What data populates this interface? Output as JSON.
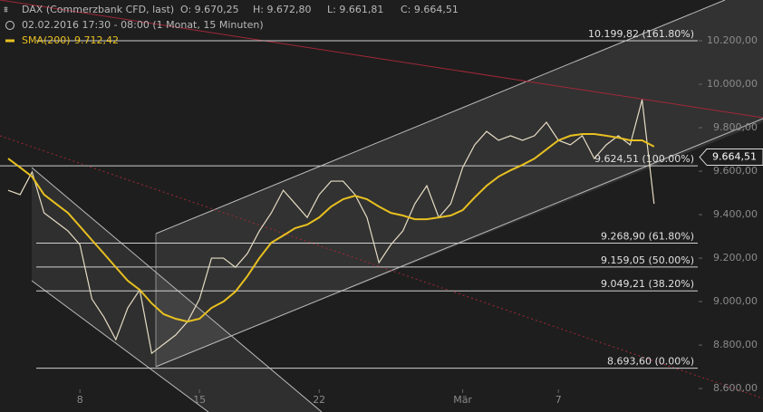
{
  "header": {
    "instrument": "DAX (Commerzbank CFD, last)",
    "open": "O: 9.670,25",
    "high": "H: 9.672,80",
    "low": "L: 9.661,81",
    "close": "C: 9.664,51",
    "period": "02.02.2016 17:30 - 08:00 (1 Monat, 15 Minuten)",
    "sma_value": "9.712,42"
  },
  "chart_data": {
    "type": "line",
    "categories": [
      null,
      null,
      null,
      null,
      null,
      null,
      "8",
      null,
      null,
      null,
      null,
      null,
      null,
      null,
      null,
      null,
      "15",
      null,
      null,
      null,
      null,
      null,
      null,
      null,
      null,
      null,
      "22",
      null,
      null,
      null,
      null,
      null,
      null,
      null,
      null,
      null,
      null,
      null,
      "Mär",
      null,
      null,
      null,
      null,
      null,
      null,
      null,
      "7",
      null,
      null,
      null,
      null,
      null,
      null,
      null,
      null
    ],
    "series": [
      {
        "name": "DAX (Commerzbank CFD, last)",
        "color": "#e6dcc4",
        "values": [
          9512,
          9492,
          9596,
          9408,
          9367,
          9325,
          9262,
          9012,
          8929,
          8825,
          8971,
          9054,
          8762,
          8804,
          8846,
          8908,
          9012,
          9200,
          9200,
          9158,
          9221,
          9325,
          9408,
          9512,
          9450,
          9387,
          9492,
          9554,
          9554,
          9492,
          9387,
          9179,
          9262,
          9325,
          9450,
          9533,
          9387,
          9450,
          9617,
          9721,
          9783,
          9742,
          9763,
          9742,
          9763,
          9825,
          9742,
          9721,
          9763,
          9658,
          9721,
          9763,
          9721,
          9929,
          9450
        ]
      },
      {
        "name": "SMA(200)",
        "color": "#e8c020",
        "values": [
          9658,
          9617,
          9575,
          9492,
          9450,
          9408,
          9346,
          9283,
          9221,
          9158,
          9096,
          9054,
          8992,
          8942,
          8921,
          8908,
          8921,
          8971,
          9000,
          9046,
          9117,
          9200,
          9271,
          9304,
          9338,
          9354,
          9387,
          9437,
          9471,
          9487,
          9471,
          9437,
          9408,
          9396,
          9379,
          9379,
          9387,
          9396,
          9421,
          9479,
          9533,
          9575,
          9604,
          9629,
          9658,
          9700,
          9742,
          9763,
          9771,
          9771,
          9763,
          9754,
          9742,
          9742,
          9713
        ]
      }
    ],
    "ylim": [
      8492,
      10387.5
    ],
    "yticks": [
      {
        "value": 10200,
        "label": "10.200,00"
      },
      {
        "value": 10000,
        "label": "10.000,00"
      },
      {
        "value": 9800,
        "label": "9.800,00"
      },
      {
        "value": 9600,
        "label": "9.600,00"
      },
      {
        "value": 9400,
        "label": "9.400,00"
      },
      {
        "value": 9200,
        "label": "9.200,00"
      },
      {
        "value": 9000,
        "label": "9.000,00"
      },
      {
        "value": 8800,
        "label": "8.800,00"
      },
      {
        "value": 8600,
        "label": "8.600,00"
      }
    ],
    "levels": [
      {
        "value": 10199.82,
        "label": "10.199,82 (161.80%)"
      },
      {
        "value": 9624.51,
        "label": "9.624,51 (100.00%)"
      },
      {
        "value": 9268.9,
        "label": "9.268,90 (61.80%)"
      },
      {
        "value": 9159.05,
        "label": "9.159,05 (50.00%)"
      },
      {
        "value": 9049.21,
        "label": "9.049,21 (38.20%)"
      },
      {
        "value": 8693.6,
        "label": "8.693,60 (0.00%)"
      }
    ],
    "last_price": {
      "value": 9664.51,
      "label": "9.664,51"
    }
  }
}
